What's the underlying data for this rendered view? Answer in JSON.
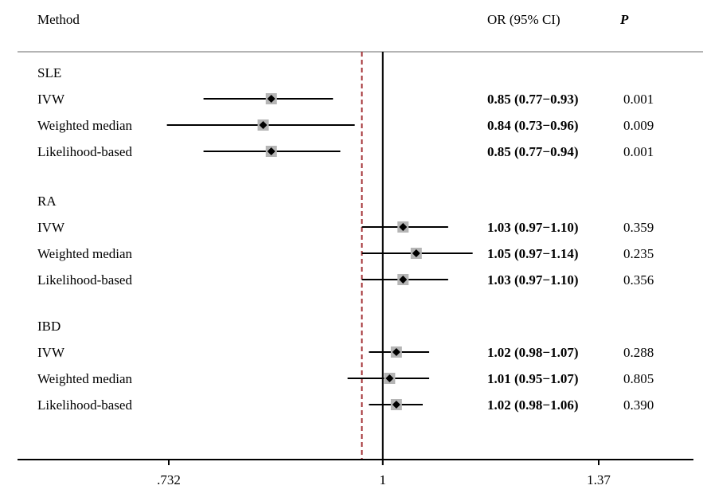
{
  "chart_data": {
    "type": "forest",
    "headers": {
      "method": "Method",
      "or_ci": "OR (95% CI)",
      "p": "P"
    },
    "x_scale": "log",
    "x_ticks": [
      {
        "value": 0.732,
        "label": ".732"
      },
      {
        "value": 1,
        "label": "1"
      },
      {
        "value": 1.37,
        "label": "1.37"
      }
    ],
    "reference_line": 1,
    "dashed_line": 0.97,
    "groups": [
      {
        "name": "SLE",
        "rows": [
          {
            "method": "IVW",
            "or": 0.85,
            "lo": 0.77,
            "hi": 0.93,
            "or_text": "0.85 (0.77−0.93)",
            "p": "0.001"
          },
          {
            "method": "Weighted median",
            "or": 0.84,
            "lo": 0.73,
            "hi": 0.96,
            "or_text": "0.84 (0.73−0.96)",
            "p": "0.009"
          },
          {
            "method": "Likelihood-based",
            "or": 0.85,
            "lo": 0.77,
            "hi": 0.94,
            "or_text": "0.85 (0.77−0.94)",
            "p": "0.001"
          }
        ]
      },
      {
        "name": "RA",
        "rows": [
          {
            "method": "IVW",
            "or": 1.03,
            "lo": 0.97,
            "hi": 1.1,
            "or_text": "1.03 (0.97−1.10)",
            "p": "0.359"
          },
          {
            "method": "Weighted median",
            "or": 1.05,
            "lo": 0.97,
            "hi": 1.14,
            "or_text": "1.05 (0.97−1.14)",
            "p": "0.235"
          },
          {
            "method": "Likelihood-based",
            "or": 1.03,
            "lo": 0.97,
            "hi": 1.1,
            "or_text": "1.03 (0.97−1.10)",
            "p": "0.356"
          }
        ]
      },
      {
        "name": "IBD",
        "rows": [
          {
            "method": "IVW",
            "or": 1.02,
            "lo": 0.98,
            "hi": 1.07,
            "or_text": "1.02 (0.98−1.07)",
            "p": "0.288"
          },
          {
            "method": "Weighted median",
            "or": 1.01,
            "lo": 0.95,
            "hi": 1.07,
            "or_text": "1.01 (0.95−1.07)",
            "p": "0.805"
          },
          {
            "method": "Likelihood-based",
            "or": 1.02,
            "lo": 0.98,
            "hi": 1.06,
            "or_text": "1.02 (0.98−1.06)",
            "p": "0.390"
          }
        ]
      }
    ],
    "colors": {
      "point": "#000000",
      "box": "#b5b5b5",
      "ci_line": "#000000",
      "dashed_line": "#a0282d",
      "header_rule": "#b4b4b4"
    }
  }
}
